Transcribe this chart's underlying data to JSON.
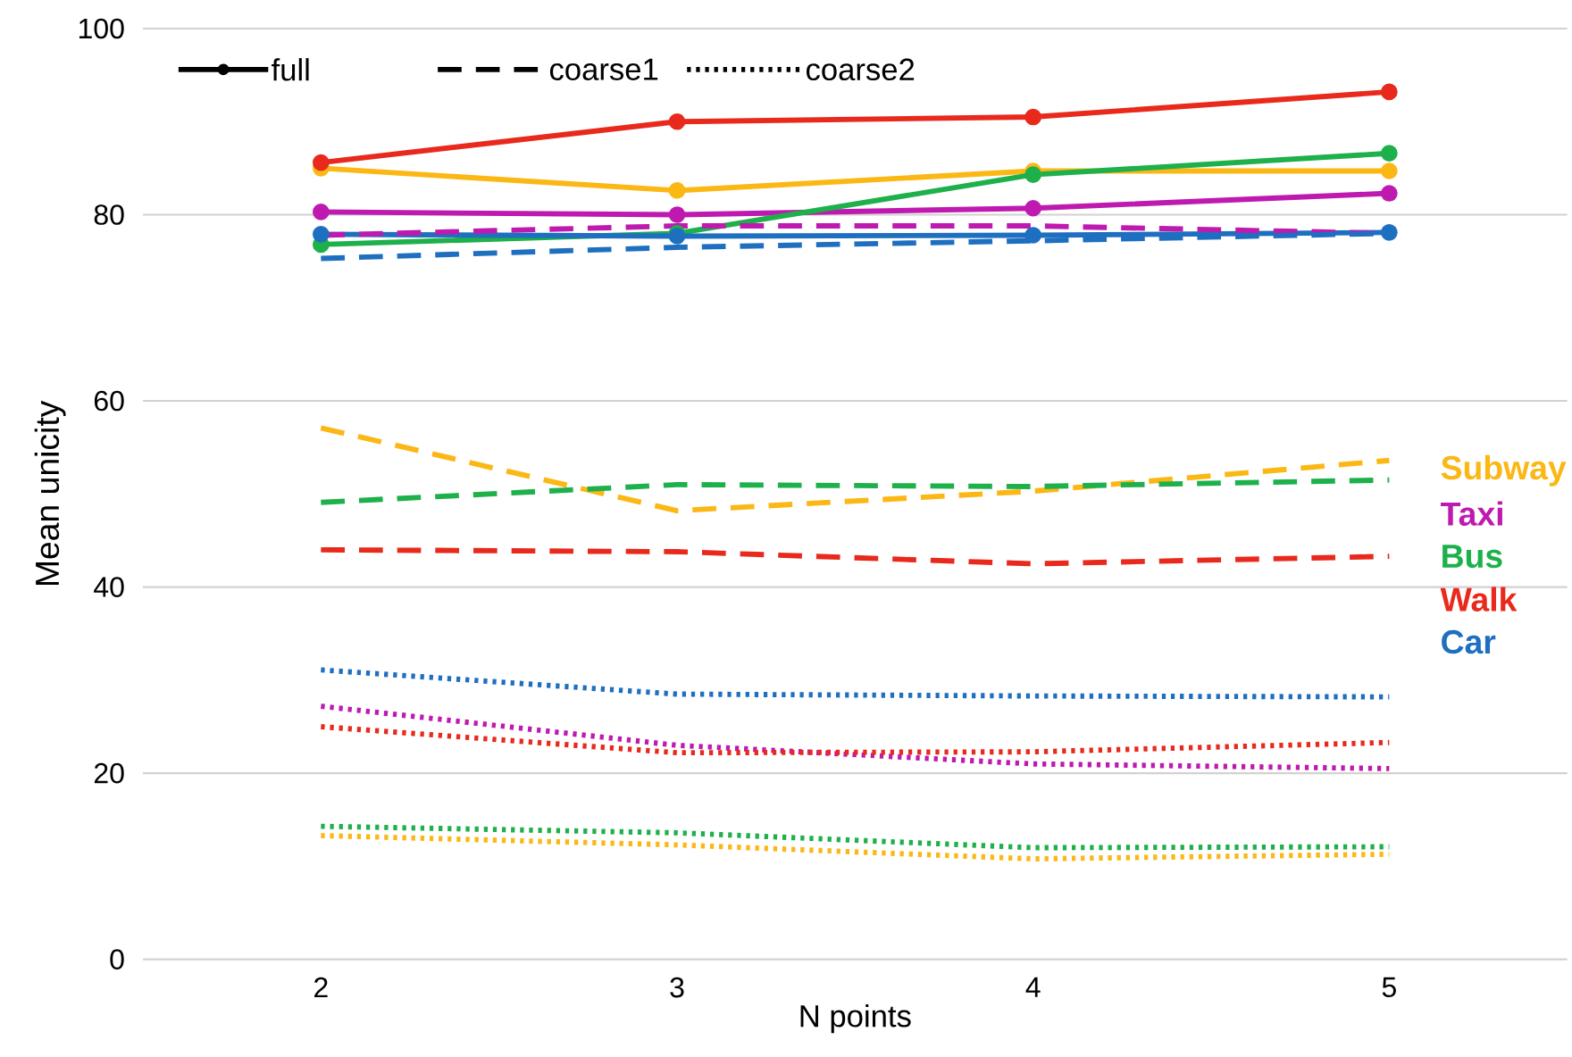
{
  "chart_data": {
    "type": "line",
    "xlabel": "N points",
    "ylabel": "Mean unicity",
    "x": [
      2,
      3,
      4,
      5
    ],
    "xlim": [
      1.5,
      5.5
    ],
    "ylim": [
      0,
      100
    ],
    "xticks": [
      2,
      3,
      4,
      5
    ],
    "yticks": [
      0,
      20,
      40,
      60,
      80,
      100
    ],
    "grid": "y",
    "annotations": [
      "full",
      "coarse1",
      "coarse2"
    ],
    "series": [
      {
        "name": "Subway",
        "color": "#fbb714",
        "line_style": "solid",
        "marker": "circle",
        "values": [
          85,
          82.6,
          84.7,
          84.7
        ]
      },
      {
        "name": "Taxi",
        "color": "#bf1ab0",
        "line_style": "solid",
        "marker": "circle",
        "values": [
          80.3,
          80,
          80.7,
          82.3
        ]
      },
      {
        "name": "Bus",
        "color": "#1db04b",
        "line_style": "solid",
        "marker": "circle",
        "values": [
          76.8,
          78,
          84.3,
          86.6
        ]
      },
      {
        "name": "Walk",
        "color": "#e8291c",
        "line_style": "solid",
        "marker": "circle",
        "values": [
          85.6,
          90,
          90.5,
          93.2
        ]
      },
      {
        "name": "Car",
        "color": "#1e6fc0",
        "line_style": "solid",
        "marker": "circle",
        "values": [
          77.9,
          77.7,
          77.8,
          78.1
        ]
      },
      {
        "color": "#fbb714",
        "line_style": "dashed",
        "marker": "none",
        "values": [
          57.1,
          48.2,
          50.3,
          53.6
        ]
      },
      {
        "color": "#bf1ab0",
        "line_style": "dashed",
        "marker": "none",
        "values": [
          77.8,
          78.8,
          78.8,
          78
        ]
      },
      {
        "color": "#1db04b",
        "line_style": "dashed",
        "marker": "none",
        "values": [
          49.1,
          51,
          50.8,
          51.5
        ]
      },
      {
        "color": "#e8291c",
        "line_style": "dashed",
        "marker": "none",
        "values": [
          44,
          43.8,
          42.5,
          43.3
        ]
      },
      {
        "color": "#1e6fc0",
        "line_style": "dashed",
        "marker": "none",
        "values": [
          75.3,
          76.5,
          77.2,
          78
        ]
      },
      {
        "color": "#fbb714",
        "line_style": "dotted",
        "marker": "none",
        "values": [
          13.3,
          12.3,
          10.8,
          11.3
        ]
      },
      {
        "color": "#bf1ab0",
        "line_style": "dotted",
        "marker": "none",
        "values": [
          27.2,
          23,
          21,
          20.5
        ]
      },
      {
        "color": "#1db04b",
        "line_style": "dotted",
        "marker": "none",
        "values": [
          14.3,
          13.6,
          12,
          12.1
        ]
      },
      {
        "color": "#e8291c",
        "line_style": "dotted",
        "marker": "none",
        "values": [
          25,
          22.2,
          22.3,
          23.3
        ]
      },
      {
        "color": "#1e6fc0",
        "line_style": "dotted",
        "marker": "none",
        "values": [
          31.1,
          28.5,
          28.3,
          28.2
        ]
      }
    ]
  }
}
